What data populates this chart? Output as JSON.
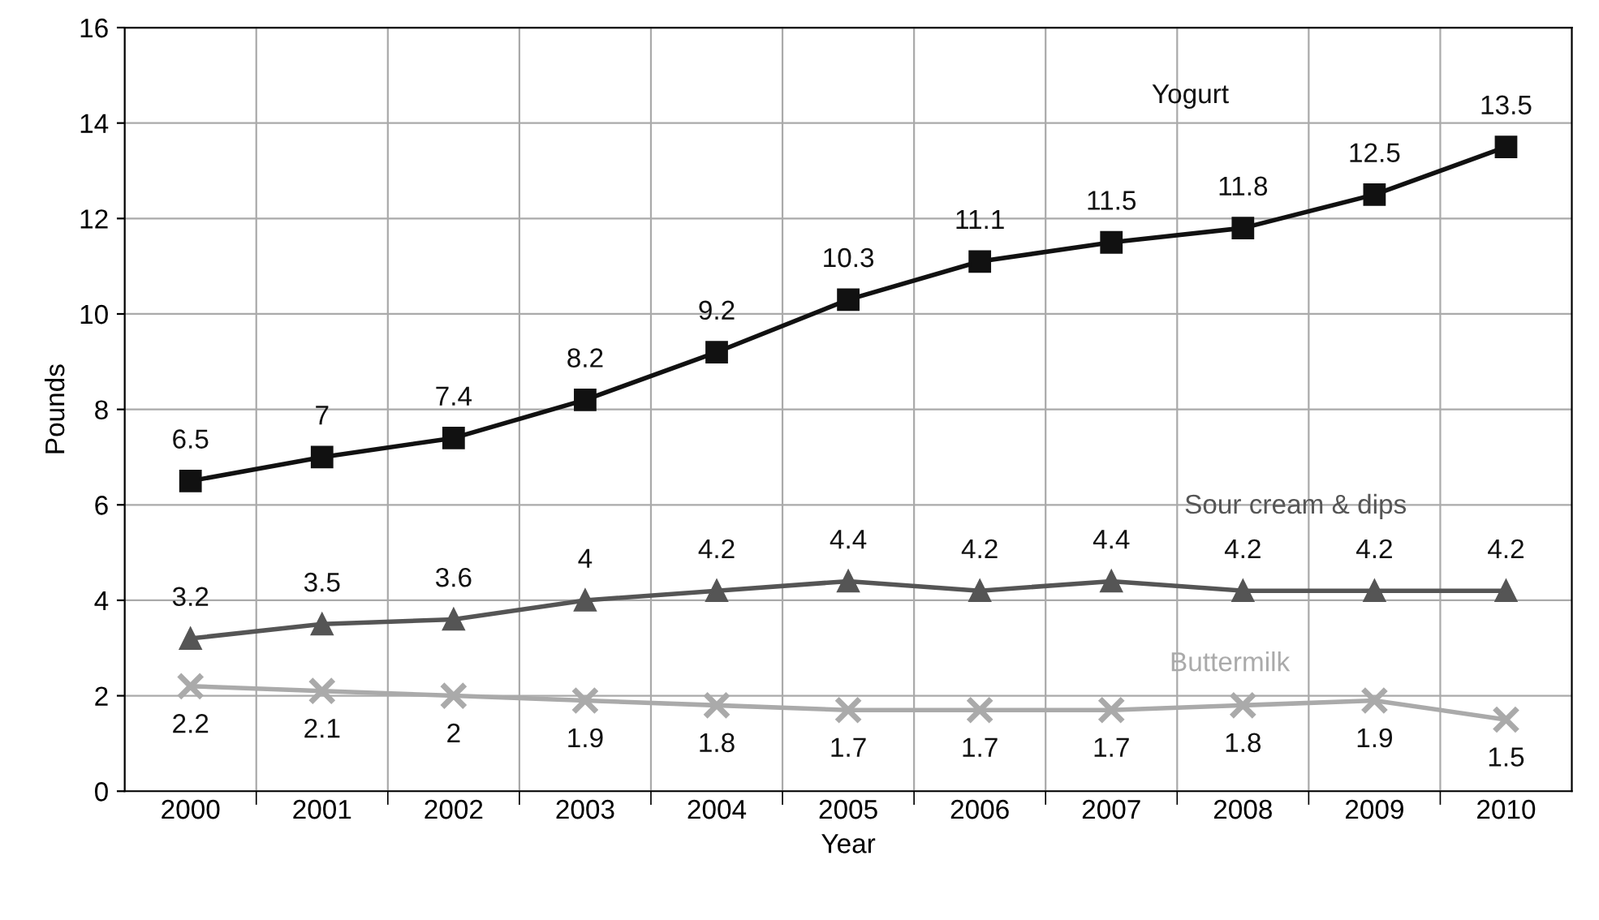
{
  "chart_data": {
    "type": "line",
    "xlabel": "Year",
    "ylabel": "Pounds",
    "categories": [
      "2000",
      "2001",
      "2002",
      "2003",
      "2004",
      "2005",
      "2006",
      "2007",
      "2008",
      "2009",
      "2010"
    ],
    "series": [
      {
        "name": "Yogurt",
        "color": "#111111",
        "marker": "square",
        "values": [
          6.5,
          7,
          7.4,
          8.2,
          9.2,
          10.3,
          11.1,
          11.5,
          11.8,
          12.5,
          13.5
        ]
      },
      {
        "name": "Sour cream & dips",
        "color": "#555555",
        "marker": "triangle",
        "values": [
          3.2,
          3.5,
          3.6,
          4,
          4.2,
          4.4,
          4.2,
          4.4,
          4.2,
          4.2,
          4.2
        ]
      },
      {
        "name": "Buttermilk",
        "color": "#aaaaaa",
        "marker": "cross",
        "values": [
          2.2,
          2.1,
          2,
          1.9,
          1.8,
          1.7,
          1.7,
          1.7,
          1.8,
          1.9,
          1.5
        ]
      }
    ],
    "ylim": [
      0,
      16
    ],
    "yticks": [
      0,
      2,
      4,
      6,
      8,
      10,
      12,
      14,
      16
    ],
    "grid": true,
    "data_labels": true,
    "line_style": "solid",
    "legend": false
  }
}
